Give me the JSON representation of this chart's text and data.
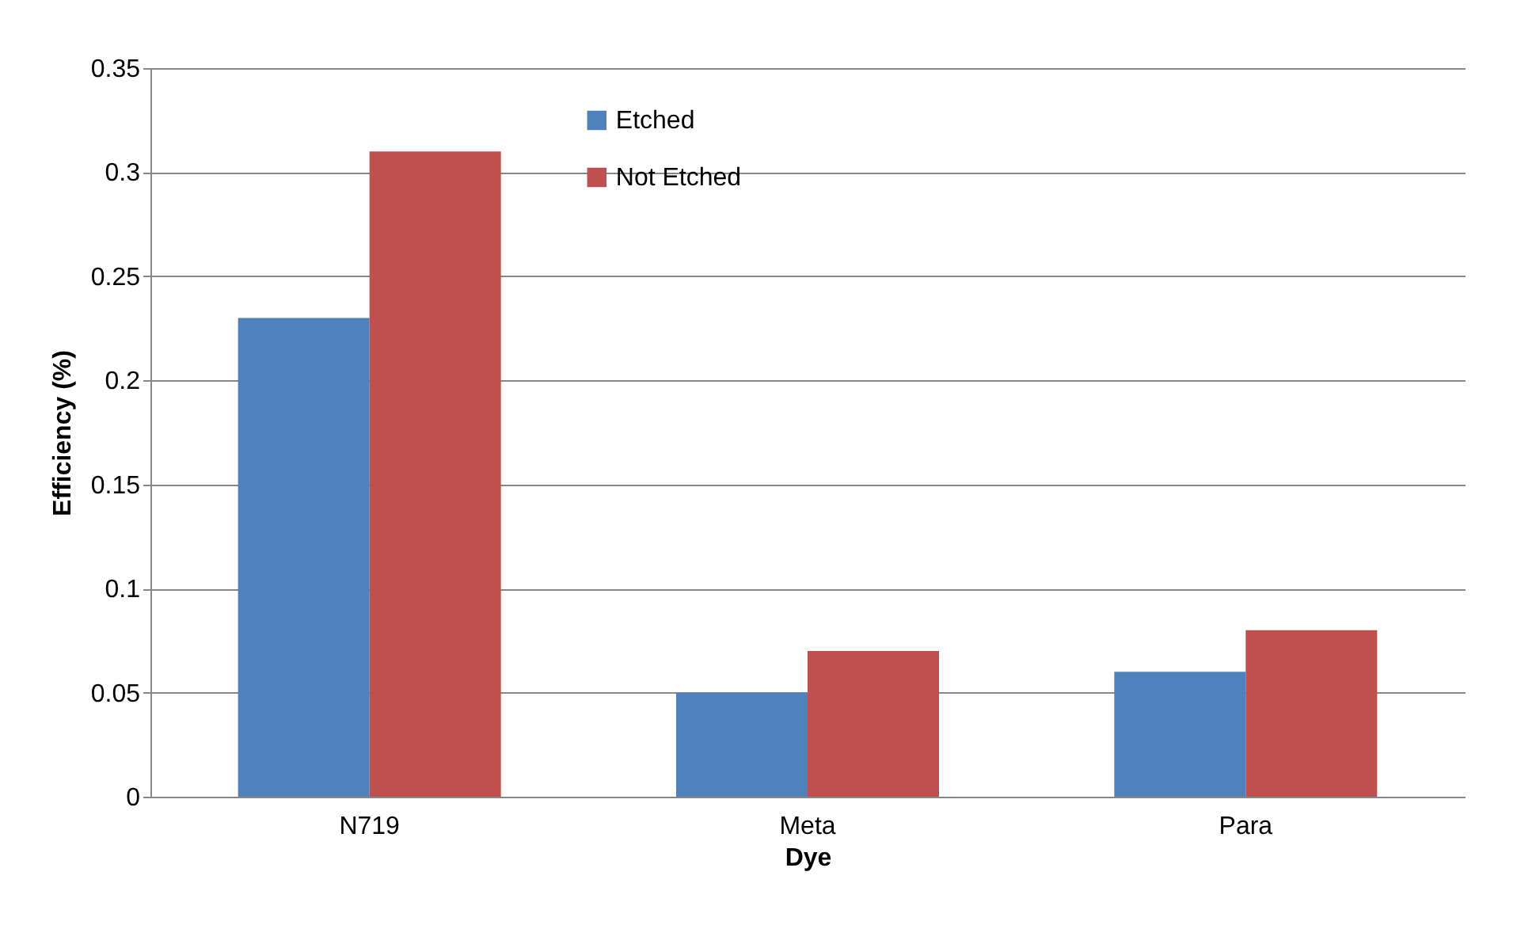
{
  "chart_data": {
    "type": "bar",
    "xlabel": "Dye",
    "ylabel": "Efficiency (%)",
    "categories": [
      "N719",
      "Meta",
      "Para"
    ],
    "series": [
      {
        "name": "Etched",
        "color": "#4f81bd",
        "values": [
          0.23,
          0.05,
          0.06
        ]
      },
      {
        "name": "Not Etched",
        "color": "#c0504d",
        "values": [
          0.31,
          0.07,
          0.08
        ]
      }
    ],
    "ylim": [
      0,
      0.35
    ],
    "yticks": [
      0,
      0.05,
      0.1,
      0.15,
      0.2,
      0.25,
      0.3,
      0.35
    ],
    "grid": "y",
    "legend": "top"
  }
}
